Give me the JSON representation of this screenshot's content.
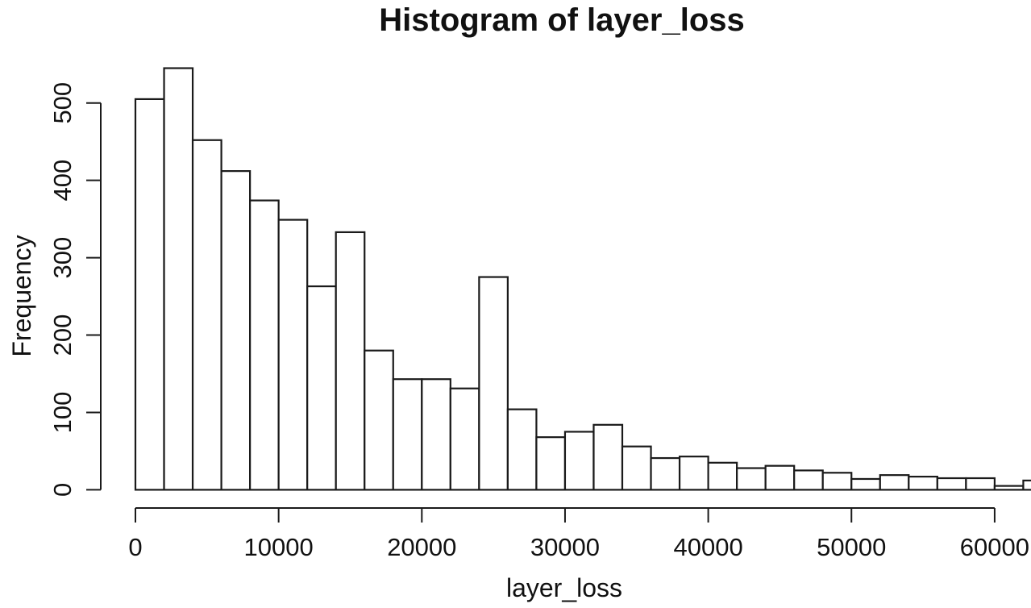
{
  "chart_data": {
    "type": "bar",
    "subtype": "histogram",
    "title": "Histogram of layer_loss",
    "xlabel": "layer_loss",
    "ylabel": "Frequency",
    "bin_start": 0,
    "bin_width": 2000,
    "frequencies": [
      505,
      545,
      452,
      412,
      374,
      349,
      263,
      333,
      180,
      143,
      143,
      131,
      275,
      104,
      68,
      75,
      84,
      56,
      41,
      43,
      35,
      28,
      31,
      25,
      22,
      14,
      19,
      17,
      15,
      15,
      5,
      12
    ],
    "x_ticks": [
      0,
      10000,
      20000,
      30000,
      40000,
      50000,
      60000
    ],
    "y_ticks": [
      0,
      100,
      200,
      300,
      400,
      500
    ],
    "xlim": [
      0,
      62560
    ],
    "ylim": [
      0,
      560
    ],
    "grid": false,
    "legend": false,
    "bar_fill": "#ffffff",
    "line_color": "#1a1a1a",
    "background": "#ffffff"
  }
}
